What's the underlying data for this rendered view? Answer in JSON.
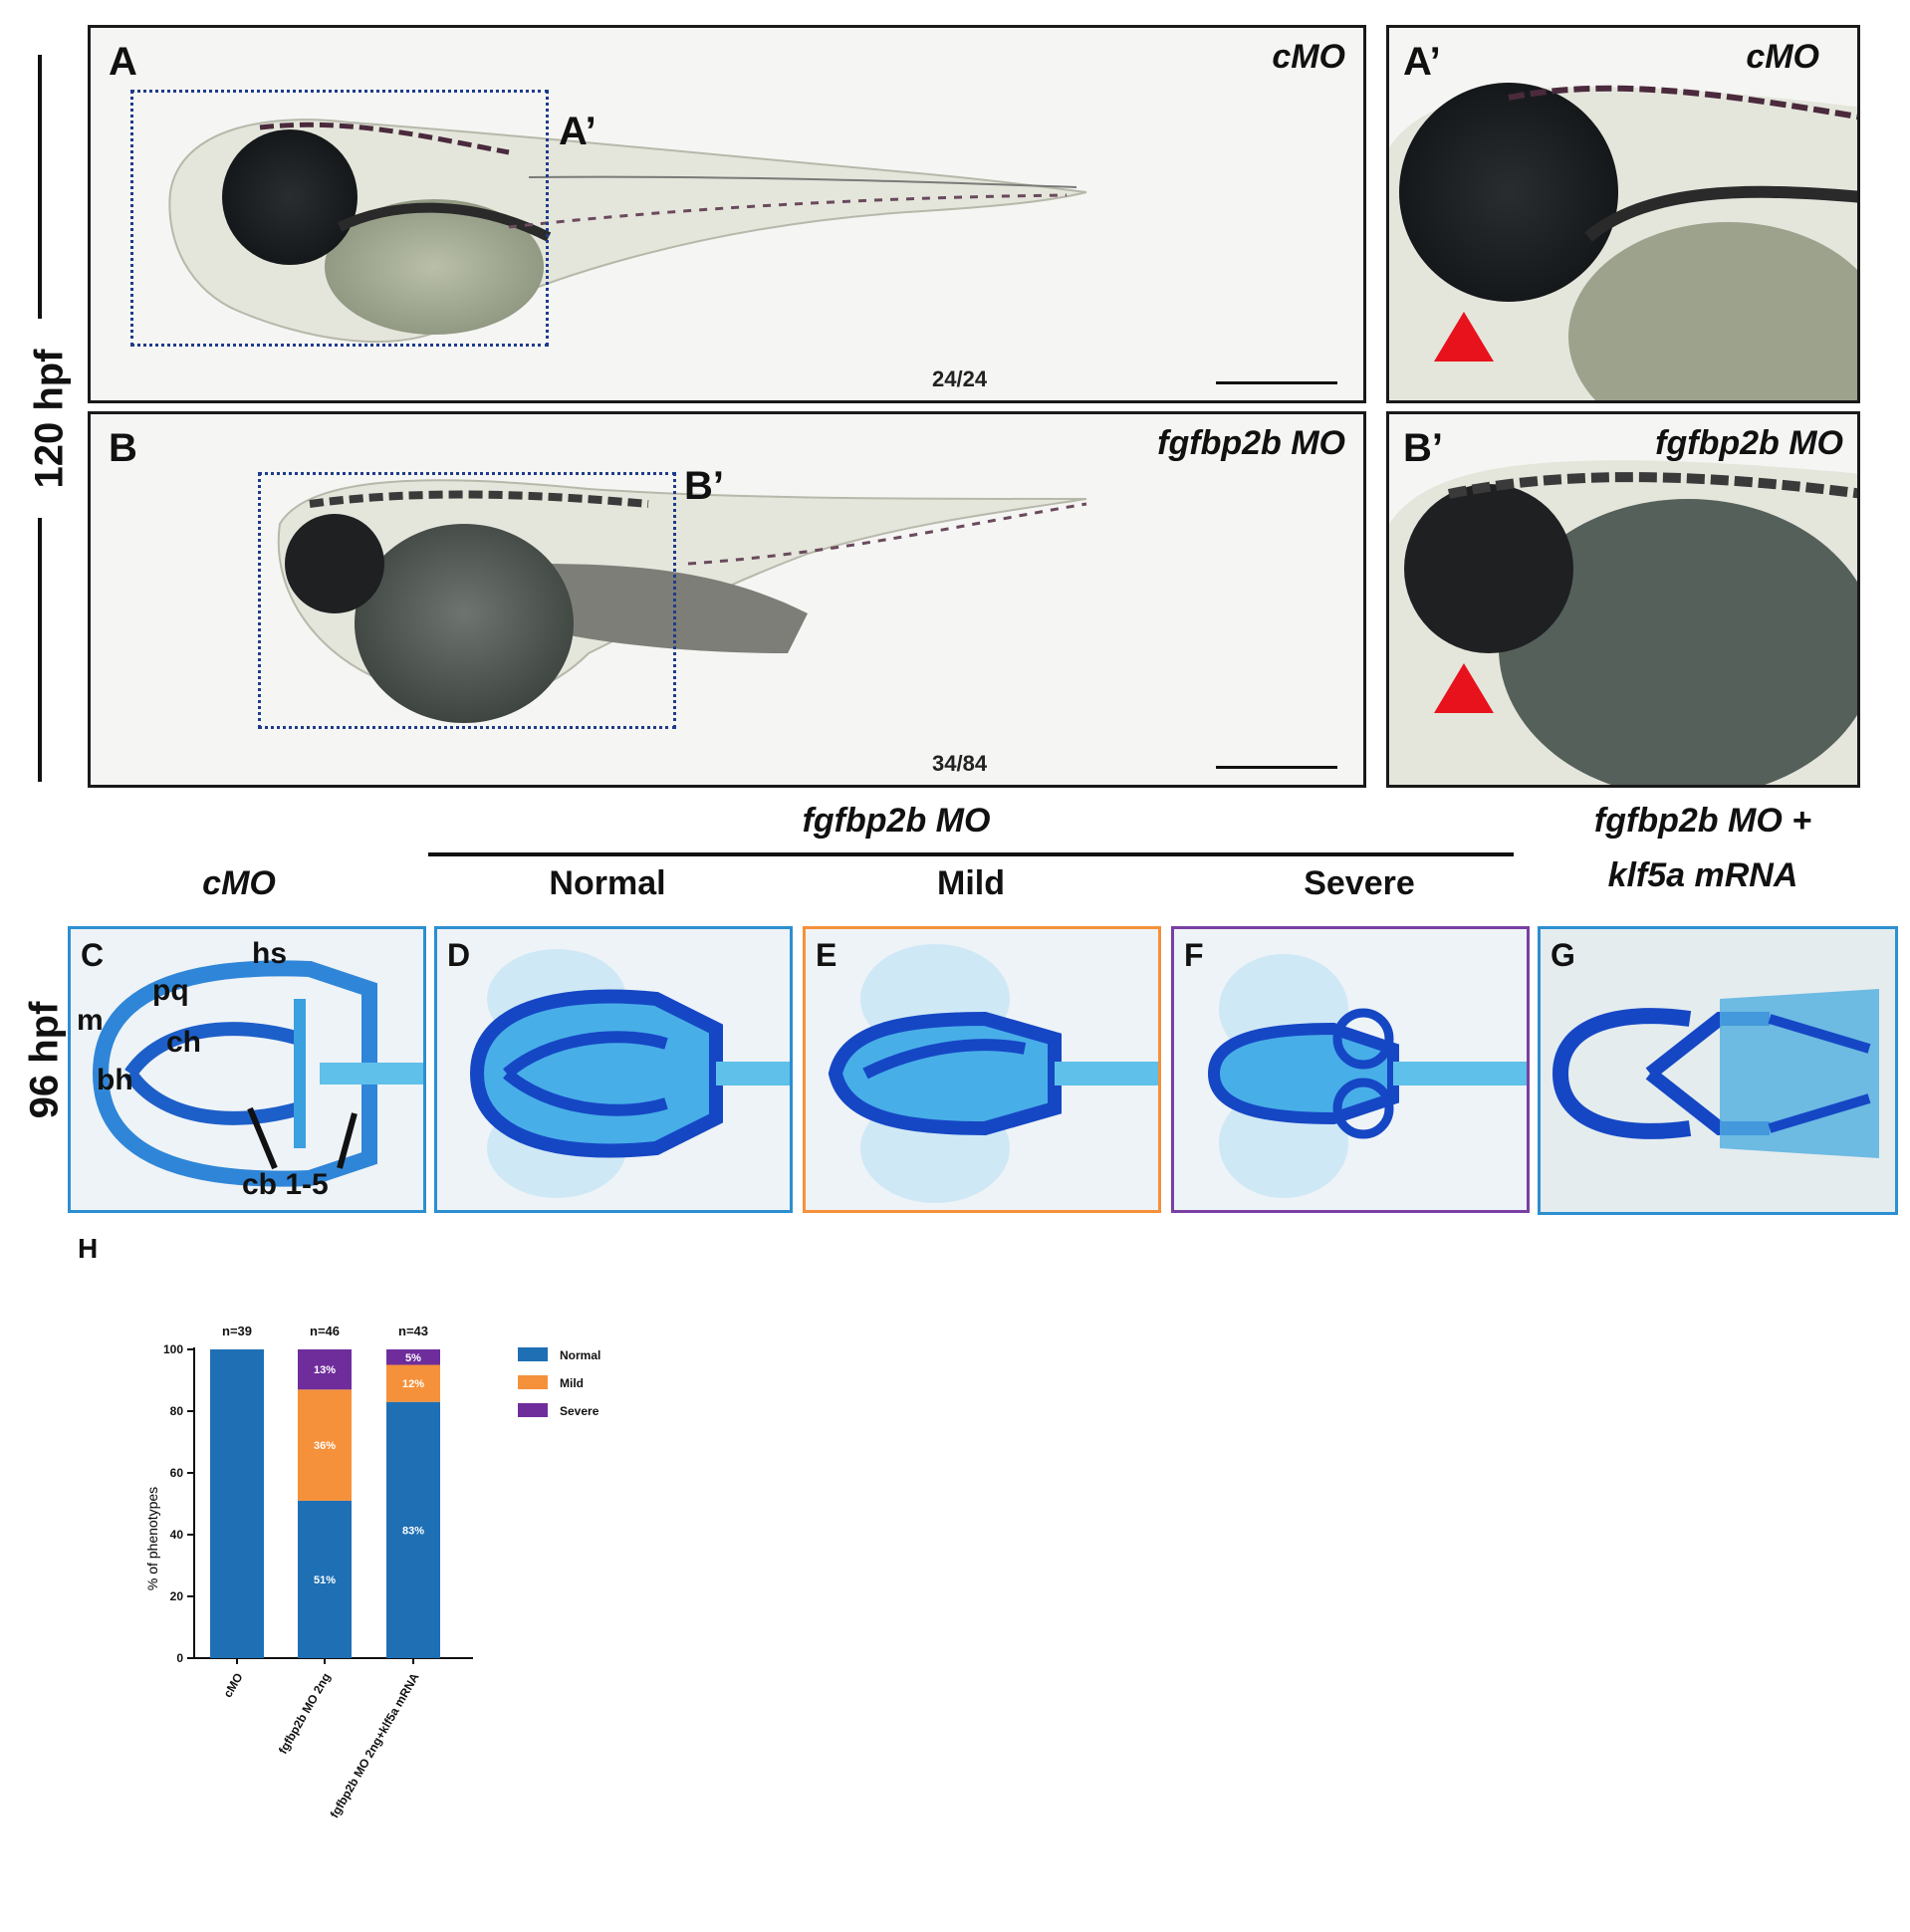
{
  "fig": {
    "time_120": "120 hpf",
    "time_96": "96 hpf",
    "panels": {
      "A": {
        "label": "A",
        "condition": "cMO",
        "count": "24/24",
        "inset_label": "A’"
      },
      "A_prime": {
        "label": "A’",
        "condition": "cMO"
      },
      "B": {
        "label": "B",
        "condition": "fgfbp2b MO",
        "count": "34/84",
        "inset_label": "B’"
      },
      "B_prime": {
        "label": "B’",
        "condition": "fgfbp2b MO"
      }
    },
    "headers": {
      "cmo": "cMO",
      "fgf": "fgfbp2b MO",
      "normal": "Normal",
      "mild": "Mild",
      "severe": "Severe",
      "rescue_line1": "fgfbp2b MO +",
      "rescue_line2": "klf5a mRNA"
    },
    "cpanels": {
      "C": "C",
      "D": "D",
      "E": "E",
      "F": "F",
      "G": "G"
    },
    "annotations": {
      "hs": "hs",
      "pq": "pq",
      "m": "m",
      "ch": "ch",
      "bh": "bh",
      "cb": "cb 1-5"
    },
    "H_label": "H"
  },
  "chart_data": {
    "type": "bar",
    "stacked": true,
    "categories": [
      "cMO",
      "fgfbp2b  MO 2ng",
      "fgfbp2b  MO 2ng+klf5a mRNA"
    ],
    "n_labels": [
      "n=39",
      "n=46",
      "n=43"
    ],
    "series": [
      {
        "name": "Normal",
        "color": "#1f6fb4",
        "values": [
          100,
          51,
          83
        ],
        "labels": [
          "",
          "51%",
          "83%"
        ]
      },
      {
        "name": "Mild",
        "color": "#f5913a",
        "values": [
          0,
          36,
          12
        ],
        "labels": [
          "",
          "36%",
          "12%"
        ]
      },
      {
        "name": "Severe",
        "color": "#6f2d9c",
        "values": [
          0,
          13,
          5
        ],
        "labels": [
          "",
          "13%",
          "5%"
        ]
      }
    ],
    "ylabel": "% of phenotypes",
    "ylim": [
      0,
      100
    ],
    "yticks": [
      0,
      20,
      40,
      60,
      80,
      100
    ],
    "legend_position": "right"
  }
}
